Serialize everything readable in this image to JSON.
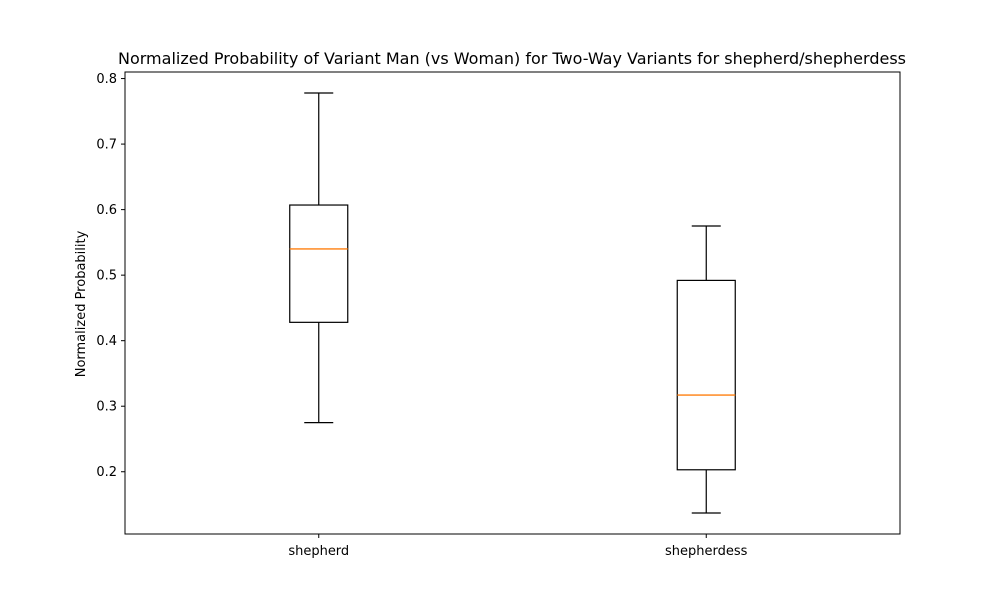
{
  "chart_data": {
    "type": "box",
    "title": "Normalized Probability of Variant Man (vs Woman) for Two-Way Variants for shepherd/shepherdess",
    "xlabel": "",
    "ylabel": "Normalized Probability",
    "ylim": [
      0.105,
      0.81
    ],
    "yticks": [
      0.2,
      0.3,
      0.4,
      0.5,
      0.6,
      0.7,
      0.8
    ],
    "ytick_labels": [
      "0.2",
      "0.3",
      "0.4",
      "0.5",
      "0.6",
      "0.7",
      "0.8"
    ],
    "categories": [
      "shepherd",
      "shepherdess"
    ],
    "boxes": [
      {
        "category": "shepherd",
        "whisker_low": 0.275,
        "q1": 0.428,
        "median": 0.54,
        "q3": 0.607,
        "whisker_high": 0.778
      },
      {
        "category": "shepherdess",
        "whisker_low": 0.137,
        "q1": 0.203,
        "median": 0.317,
        "q3": 0.492,
        "whisker_high": 0.575
      }
    ],
    "grid": false,
    "colors": {
      "box": "#000000",
      "median": "#ff7f0e"
    }
  }
}
